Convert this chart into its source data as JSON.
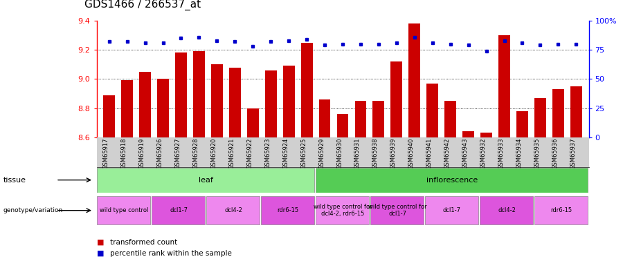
{
  "title": "GDS1466 / 266537_at",
  "samples": [
    "GSM65917",
    "GSM65918",
    "GSM65919",
    "GSM65926",
    "GSM65927",
    "GSM65928",
    "GSM65920",
    "GSM65921",
    "GSM65922",
    "GSM65923",
    "GSM65924",
    "GSM65925",
    "GSM65929",
    "GSM65930",
    "GSM65931",
    "GSM65938",
    "GSM65939",
    "GSM65940",
    "GSM65941",
    "GSM65942",
    "GSM65943",
    "GSM65932",
    "GSM65933",
    "GSM65934",
    "GSM65935",
    "GSM65936",
    "GSM65937"
  ],
  "bar_values": [
    8.89,
    8.99,
    9.05,
    9.0,
    9.18,
    9.19,
    9.1,
    9.08,
    8.8,
    9.06,
    9.09,
    9.25,
    8.86,
    8.76,
    8.85,
    8.85,
    9.12,
    9.38,
    8.97,
    8.85,
    8.64,
    8.63,
    9.3,
    8.78,
    8.87,
    8.93,
    8.95
  ],
  "percentile_values": [
    82,
    82,
    81,
    81,
    85,
    86,
    83,
    82,
    78,
    82,
    83,
    84,
    79,
    80,
    80,
    80,
    81,
    86,
    81,
    80,
    79,
    74,
    83,
    81,
    79,
    80,
    80
  ],
  "ylim": [
    8.6,
    9.4
  ],
  "yticks": [
    8.6,
    8.8,
    9.0,
    9.2,
    9.4
  ],
  "right_yticks": [
    0,
    25,
    50,
    75,
    100
  ],
  "right_ylim": [
    0,
    100
  ],
  "bar_color": "#cc0000",
  "percentile_color": "#0000cc",
  "bg_color": "#ffffff",
  "sample_label_bg": "#d0d0d0",
  "tissue_groups": [
    {
      "label": "leaf",
      "start": 0,
      "end": 12,
      "color": "#99ee99"
    },
    {
      "label": "inflorescence",
      "start": 12,
      "end": 27,
      "color": "#55cc55"
    }
  ],
  "genotype_groups": [
    {
      "label": "wild type control",
      "start": 0,
      "end": 3,
      "color": "#ee88ee"
    },
    {
      "label": "dcl1-7",
      "start": 3,
      "end": 6,
      "color": "#dd55dd"
    },
    {
      "label": "dcl4-2",
      "start": 6,
      "end": 9,
      "color": "#ee88ee"
    },
    {
      "label": "rdr6-15",
      "start": 9,
      "end": 12,
      "color": "#dd55dd"
    },
    {
      "label": "wild type control for\ndcl4-2, rdr6-15",
      "start": 12,
      "end": 15,
      "color": "#ee88ee"
    },
    {
      "label": "wild type control for\ndcl1-7",
      "start": 15,
      "end": 18,
      "color": "#dd55dd"
    },
    {
      "label": "dcl1-7",
      "start": 18,
      "end": 21,
      "color": "#ee88ee"
    },
    {
      "label": "dcl4-2",
      "start": 21,
      "end": 24,
      "color": "#dd55dd"
    },
    {
      "label": "rdr6-15",
      "start": 24,
      "end": 27,
      "color": "#ee88ee"
    }
  ],
  "tick_fontsize": 8,
  "title_fontsize": 11,
  "sample_fontsize": 6,
  "annotation_fontsize": 8
}
